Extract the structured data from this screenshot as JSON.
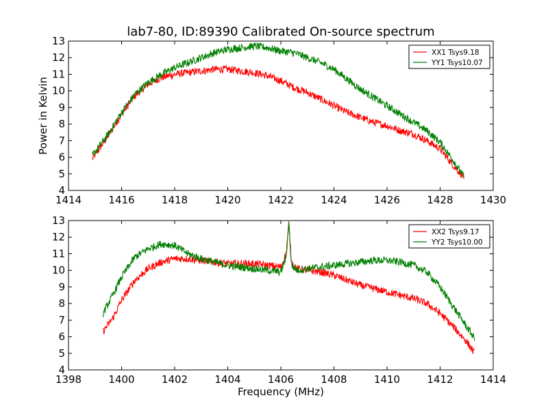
{
  "chart_data": [
    {
      "type": "line",
      "title": "lab7-80, ID:89390 Calibrated On-source spectrum",
      "xlabel": "",
      "ylabel": "Power in Kelvin",
      "xlim": [
        1414,
        1430
      ],
      "ylim": [
        4,
        13
      ],
      "xticks": [
        "1414",
        "1416",
        "1418",
        "1420",
        "1422",
        "1424",
        "1426",
        "1428",
        "1430"
      ],
      "yticks": [
        "4",
        "5",
        "6",
        "7",
        "8",
        "9",
        "10",
        "11",
        "12",
        "13"
      ],
      "grid": false,
      "legend_position": "top-right",
      "series": [
        {
          "name": "XX1 Tsys9.18",
          "color": "#ff0000",
          "x": [
            1414.9,
            1415.5,
            1416.0,
            1416.5,
            1417.0,
            1417.5,
            1418.0,
            1418.5,
            1419.0,
            1419.5,
            1420.0,
            1420.5,
            1421.0,
            1421.5,
            1422.0,
            1422.5,
            1423.0,
            1423.5,
            1424.0,
            1424.5,
            1425.0,
            1425.5,
            1426.0,
            1426.5,
            1427.0,
            1427.5,
            1428.0,
            1428.5,
            1428.9
          ],
          "y": [
            5.9,
            7.3,
            8.6,
            9.7,
            10.4,
            10.8,
            11.0,
            11.1,
            11.2,
            11.3,
            11.3,
            11.2,
            11.1,
            10.9,
            10.6,
            10.2,
            9.9,
            9.5,
            9.1,
            8.7,
            8.4,
            8.1,
            7.9,
            7.6,
            7.4,
            7.0,
            6.5,
            5.5,
            4.8
          ]
        },
        {
          "name": "YY1 Tsys10.07",
          "color": "#007f00",
          "x": [
            1414.9,
            1415.5,
            1416.0,
            1416.5,
            1417.0,
            1417.5,
            1418.0,
            1418.5,
            1419.0,
            1419.5,
            1420.0,
            1420.5,
            1421.0,
            1421.5,
            1422.0,
            1422.5,
            1423.0,
            1423.5,
            1424.0,
            1424.5,
            1425.0,
            1425.5,
            1426.0,
            1426.5,
            1427.0,
            1427.5,
            1428.0,
            1428.5,
            1428.9
          ],
          "y": [
            6.1,
            7.4,
            8.7,
            9.8,
            10.5,
            11.0,
            11.4,
            11.7,
            12.0,
            12.3,
            12.5,
            12.6,
            12.7,
            12.6,
            12.4,
            12.3,
            12.0,
            11.7,
            11.3,
            10.7,
            10.1,
            9.6,
            9.1,
            8.6,
            8.1,
            7.6,
            6.9,
            5.8,
            4.8
          ]
        }
      ]
    },
    {
      "type": "line",
      "title": "",
      "xlabel": "Frequency (MHz)",
      "ylabel": "",
      "xlim": [
        1398,
        1414
      ],
      "ylim": [
        4,
        13
      ],
      "xticks": [
        "1398",
        "1400",
        "1402",
        "1404",
        "1406",
        "1408",
        "1410",
        "1412",
        "1414"
      ],
      "yticks": [
        "4",
        "5",
        "6",
        "7",
        "8",
        "9",
        "10",
        "11",
        "12",
        "13"
      ],
      "grid": false,
      "legend_position": "top-right",
      "series": [
        {
          "name": "XX2 Tsys9.17",
          "color": "#ff0000",
          "x": [
            1399.3,
            1399.7,
            1400.0,
            1400.5,
            1401.0,
            1401.5,
            1402.0,
            1402.5,
            1403.0,
            1403.5,
            1404.0,
            1404.5,
            1405.0,
            1405.5,
            1406.0,
            1406.2,
            1406.3,
            1406.4,
            1406.6,
            1407.0,
            1407.5,
            1408.0,
            1408.5,
            1409.0,
            1409.5,
            1410.0,
            1410.5,
            1411.0,
            1411.5,
            1412.0,
            1412.5,
            1413.0,
            1413.3
          ],
          "y": [
            6.3,
            7.2,
            8.2,
            9.4,
            10.1,
            10.5,
            10.7,
            10.7,
            10.6,
            10.5,
            10.4,
            10.4,
            10.4,
            10.3,
            10.2,
            11.0,
            12.8,
            10.5,
            10.1,
            10.0,
            9.9,
            9.7,
            9.4,
            9.1,
            8.9,
            8.7,
            8.5,
            8.3,
            8.0,
            7.4,
            6.6,
            5.7,
            5.0
          ]
        },
        {
          "name": "YY2 Tsys10.00",
          "color": "#007f00",
          "x": [
            1399.3,
            1399.7,
            1400.0,
            1400.5,
            1401.0,
            1401.5,
            1402.0,
            1402.5,
            1403.0,
            1403.5,
            1404.0,
            1404.5,
            1405.0,
            1405.5,
            1406.0,
            1406.2,
            1406.3,
            1406.4,
            1406.6,
            1407.0,
            1407.5,
            1408.0,
            1408.5,
            1409.0,
            1409.5,
            1410.0,
            1410.5,
            1411.0,
            1411.5,
            1412.0,
            1412.5,
            1413.0,
            1413.3
          ],
          "y": [
            7.4,
            8.6,
            9.6,
            10.8,
            11.3,
            11.6,
            11.5,
            11.0,
            10.7,
            10.5,
            10.3,
            10.2,
            10.1,
            10.0,
            9.9,
            10.8,
            12.9,
            10.3,
            10.0,
            10.1,
            10.2,
            10.3,
            10.4,
            10.5,
            10.6,
            10.6,
            10.5,
            10.3,
            9.9,
            9.0,
            7.8,
            6.6,
            5.9
          ]
        }
      ]
    }
  ]
}
